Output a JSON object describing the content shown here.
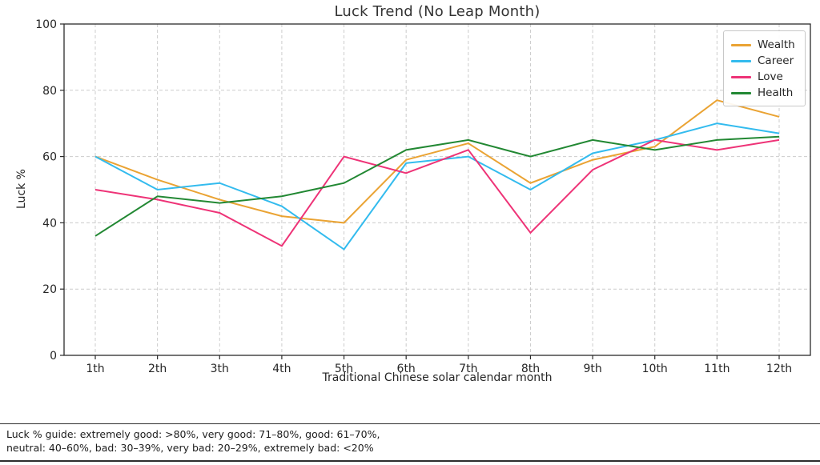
{
  "title": "Luck Trend (No Leap Month)",
  "axes": {
    "xlabel": "Traditional Chinese solar calendar month",
    "ylabel": "Luck %"
  },
  "footer": {
    "line1": "Luck % guide: extremely good: >80%, very good: 71–80%, good: 61–70%,",
    "line2": "neutral: 40–60%, bad: 30–39%, very bad: 20–29%, extremely bad: <20%"
  },
  "chart_data": {
    "type": "line",
    "title": "Luck Trend (No Leap Month)",
    "xlabel": "Traditional Chinese solar calendar month",
    "ylabel": "Luck %",
    "categories": [
      "1th",
      "2th",
      "3th",
      "4th",
      "5th",
      "6th",
      "7th",
      "8th",
      "9th",
      "10th",
      "11th",
      "12th"
    ],
    "ylim": [
      0,
      100
    ],
    "yticks": [
      0,
      20,
      40,
      60,
      80,
      100
    ],
    "grid": true,
    "grid_style": "dashed",
    "legend_position": "upper right",
    "legend_order": [
      "Wealth",
      "Career",
      "Love",
      "Health"
    ],
    "series": [
      {
        "name": "Wealth",
        "color": "#EAA333",
        "values": [
          60,
          53,
          47,
          42,
          40,
          59,
          64,
          52,
          59,
          63,
          77,
          72
        ]
      },
      {
        "name": "Career",
        "color": "#33BBEE",
        "values": [
          60,
          50,
          52,
          45,
          32,
          58,
          60,
          50,
          61,
          65,
          70,
          67
        ]
      },
      {
        "name": "Love",
        "color": "#EE3377",
        "values": [
          50,
          47,
          43,
          33,
          60,
          55,
          62,
          37,
          56,
          65,
          62,
          65
        ]
      },
      {
        "name": "Health",
        "color": "#228833",
        "values": [
          36,
          48,
          46,
          48,
          52,
          62,
          65,
          60,
          65,
          62,
          65,
          66
        ]
      }
    ]
  }
}
